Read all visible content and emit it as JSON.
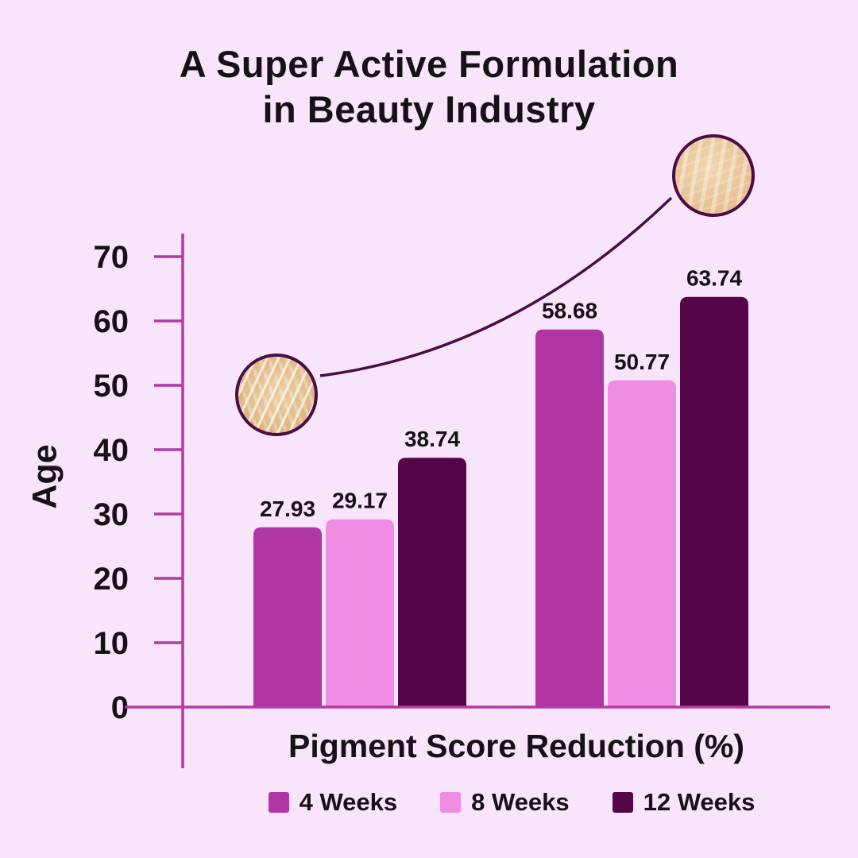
{
  "title": {
    "line1": "A Super Active Formulation",
    "line2": "in Beauty Industry"
  },
  "chart_data": {
    "type": "bar",
    "title": "A Super Active Formulation in Beauty Industry",
    "xlabel": "Pigment Score Reduction (%)",
    "ylabel": "Age",
    "ylim": [
      0,
      70
    ],
    "yticks": [
      0,
      10,
      20,
      30,
      40,
      50,
      60,
      70
    ],
    "categories": [
      "",
      ""
    ],
    "series": [
      {
        "name": "4 Weeks",
        "color": "#b136a3",
        "values": [
          27.93,
          58.68
        ]
      },
      {
        "name": "8 Weeks",
        "color": "#ef8ce3",
        "values": [
          29.17,
          50.77
        ]
      },
      {
        "name": "12 Weeks",
        "color": "#540649",
        "values": [
          38.74,
          63.74
        ]
      }
    ],
    "data_labels": [
      "27.93",
      "29.17",
      "38.74",
      "58.68",
      "50.77",
      "63.74"
    ],
    "legend_position": "bottom",
    "grid": false
  },
  "colors": {
    "background": "#f8e4fb",
    "axis": "#b23aa6",
    "text": "#161116",
    "annotation": "#4a0c44"
  },
  "decorations": {
    "before_swatch_icon": "skin-texture-before-circle",
    "after_swatch_icon": "skin-texture-after-circle",
    "connector_icon": "zoom-connector-curve"
  }
}
